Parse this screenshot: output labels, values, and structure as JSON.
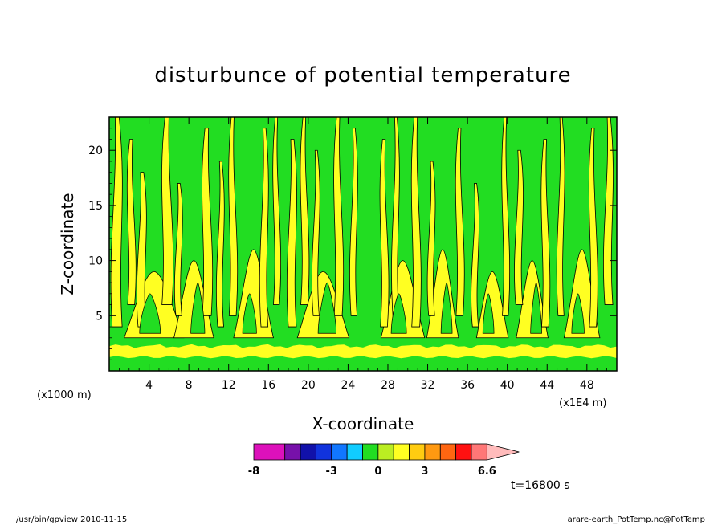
{
  "chart_data": {
    "type": "heatmap",
    "title": "disturbunce of potential temperature",
    "xlabel": "X-coordinate",
    "ylabel": "Z-coordinate",
    "x_unit_left": "(x1000 m)",
    "x_unit_right": "(x1E4 m)",
    "xlim": [
      0,
      51
    ],
    "ylim": [
      0,
      23
    ],
    "x_ticks": [
      4,
      8,
      12,
      16,
      20,
      24,
      28,
      32,
      36,
      40,
      44,
      48
    ],
    "y_ticks": [
      5,
      10,
      15,
      20
    ],
    "colorbar": {
      "levels": [
        -8,
        -6,
        -5,
        -4,
        -3,
        -2,
        -1,
        0,
        1,
        2,
        3,
        4,
        5,
        6,
        6.6
      ],
      "colors": [
        "#dd11bb",
        "#dd11bb",
        "#7711aa",
        "#1111aa",
        "#1133dd",
        "#1177ff",
        "#11ccff",
        "#22dd22",
        "#bbee22",
        "#ffff22",
        "#ffcc11",
        "#ff9911",
        "#ff6611",
        "#ff1111",
        "#ff7777"
      ],
      "extend_color": "#ffbbbb",
      "tick_labels": [
        "-8",
        "-3",
        "0",
        "3",
        "6.6"
      ],
      "tick_values": [
        -8,
        -3,
        0,
        3,
        6.6
      ]
    },
    "background_color": "#22dd22",
    "positive_color": "#ffff22",
    "time_label": "t=16800 s"
  },
  "footer": {
    "left": "/usr/bin/gpview   2010-11-15",
    "right": "arare-earth_PotTemp.nc@PotTemp"
  }
}
